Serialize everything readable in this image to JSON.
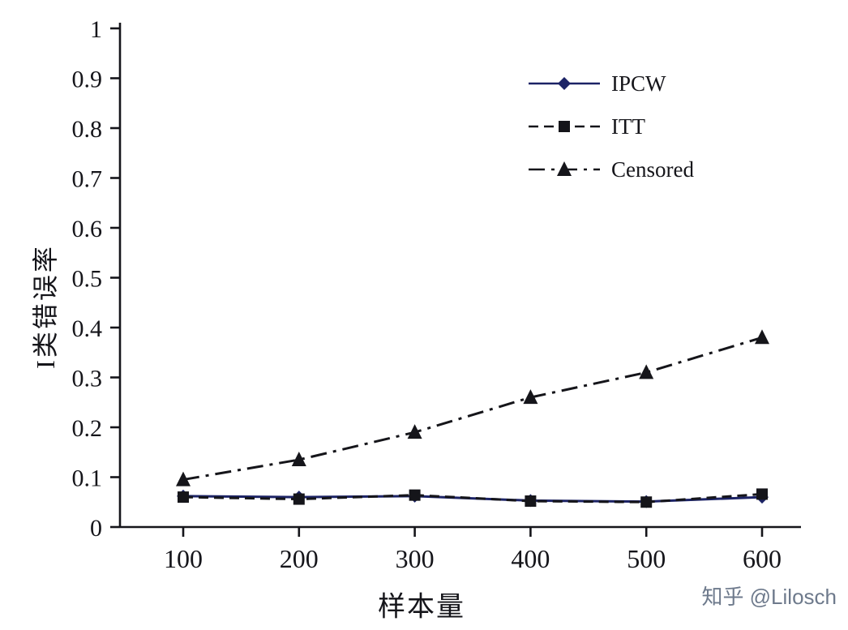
{
  "watermark": "知乎 @Lilosch",
  "chart_data": {
    "type": "line",
    "xlabel": "样本量",
    "ylabel": "I类错误率",
    "x": [
      100,
      200,
      300,
      400,
      500,
      600
    ],
    "xlim": [
      100,
      600
    ],
    "ylim": [
      0,
      1
    ],
    "yticks": [
      0,
      0.1,
      0.2,
      0.3,
      0.4,
      0.5,
      0.6,
      0.7,
      0.8,
      0.9,
      1
    ],
    "grid": false,
    "legend_position": "upper-right-inside",
    "axis_color": "#15151a",
    "series": [
      {
        "name": "IPCW",
        "marker": "diamond",
        "line_style": "solid",
        "color": "#1c2366",
        "values": [
          0.062,
          0.06,
          0.062,
          0.053,
          0.051,
          0.06
        ]
      },
      {
        "name": "ITT",
        "marker": "square",
        "line_style": "dashed",
        "color": "#15151a",
        "values": [
          0.06,
          0.056,
          0.064,
          0.052,
          0.05,
          0.066
        ]
      },
      {
        "name": "Censored",
        "marker": "triangle",
        "line_style": "dash-dot",
        "color": "#15151a",
        "values": [
          0.095,
          0.135,
          0.19,
          0.26,
          0.31,
          0.38
        ]
      }
    ]
  }
}
